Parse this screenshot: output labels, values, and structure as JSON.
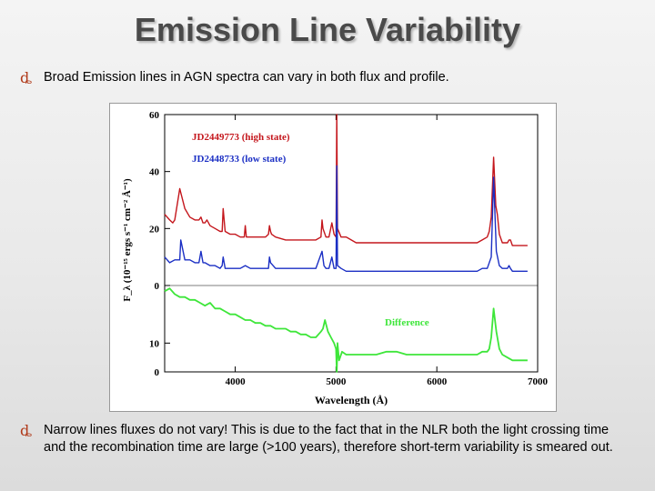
{
  "slide": {
    "title": "Emission Line Variability",
    "bullet_glyph": "ȡ",
    "bullet1": "Broad Emission lines in AGN spectra can vary in both flux and profile.",
    "bullet2": "Narrow lines fluxes do not vary! This is due to the fact that in the NLR both the light crossing time and the recombination time are large (>100 years), therefore short-term variability is smeared out."
  },
  "chart_data": {
    "type": "line",
    "xlabel": "Wavelength (Å)",
    "ylabel": "F_λ (10⁻¹⁵ ergs s⁻¹ cm⁻² Å⁻¹)",
    "xlim": [
      3300,
      7000
    ],
    "ylim_top": [
      0,
      60
    ],
    "ylim_bottom": [
      0,
      30
    ],
    "x_ticks": [
      "4000",
      "5000",
      "6000",
      "7000"
    ],
    "y_ticks_top": [
      "0",
      "20",
      "40",
      "60"
    ],
    "y_ticks_bottom": [
      "0",
      "10"
    ],
    "series": [
      {
        "name": "JD2449773 (high state)",
        "color": "#c4161c",
        "x": [
          3300,
          3350,
          3380,
          3400,
          3450,
          3500,
          3550,
          3600,
          3640,
          3660,
          3680,
          3700,
          3720,
          3750,
          3800,
          3850,
          3870,
          3880,
          3900,
          3950,
          4000,
          4050,
          4090,
          4100,
          4110,
          4150,
          4200,
          4300,
          4330,
          4340,
          4350,
          4360,
          4400,
          4500,
          4550,
          4600,
          4650,
          4700,
          4800,
          4850,
          4861,
          4870,
          4900,
          4930,
          4959,
          4980,
          5000,
          5007,
          5015,
          5050,
          5100,
          5200,
          5300,
          5400,
          5500,
          5600,
          5700,
          5800,
          5900,
          6000,
          6100,
          6200,
          6300,
          6400,
          6450,
          6500,
          6520,
          6540,
          6563,
          6585,
          6600,
          6620,
          6650,
          6700,
          6716,
          6730,
          6750,
          6800,
          6850,
          6900
        ],
        "values": [
          25,
          23,
          22,
          23,
          34,
          27,
          24,
          23,
          23,
          24,
          22,
          22,
          23,
          21,
          20,
          19,
          19,
          27,
          19,
          18,
          18,
          17,
          17,
          21,
          17,
          17,
          17,
          17,
          18,
          21,
          19,
          18,
          17,
          16,
          16,
          16,
          16,
          16,
          16,
          17,
          23,
          20,
          17,
          17,
          22,
          18,
          17,
          62,
          20,
          17,
          17,
          15,
          15,
          15,
          15,
          15,
          15,
          15,
          15,
          15,
          15,
          15,
          15,
          15,
          16,
          17,
          19,
          24,
          45,
          28,
          25,
          18,
          15,
          15,
          16,
          16,
          14,
          14,
          14,
          14
        ]
      },
      {
        "name": "JD2448733 (low state)",
        "color": "#1b2fc4",
        "x": [
          3300,
          3350,
          3400,
          3450,
          3460,
          3500,
          3550,
          3600,
          3640,
          3660,
          3680,
          3700,
          3750,
          3800,
          3850,
          3870,
          3880,
          3900,
          3950,
          4000,
          4050,
          4100,
          4150,
          4200,
          4300,
          4330,
          4340,
          4350,
          4400,
          4500,
          4600,
          4700,
          4800,
          4861,
          4880,
          4900,
          4930,
          4959,
          4980,
          5000,
          5007,
          5015,
          5050,
          5100,
          5200,
          5300,
          5400,
          5500,
          5600,
          5700,
          5800,
          5900,
          6000,
          6100,
          6200,
          6300,
          6400,
          6450,
          6500,
          6540,
          6563,
          6590,
          6620,
          6650,
          6700,
          6716,
          6730,
          6750,
          6800,
          6900
        ],
        "values": [
          10,
          8,
          9,
          9,
          16,
          9,
          9,
          8,
          8,
          12,
          8,
          8,
          7,
          7,
          6,
          7,
          10,
          6,
          6,
          6,
          6,
          7,
          6,
          6,
          6,
          6,
          10,
          8,
          6,
          6,
          6,
          6,
          6,
          12,
          7,
          6,
          6,
          10,
          6,
          6,
          42,
          7,
          6,
          5,
          5,
          5,
          5,
          5,
          5,
          5,
          5,
          5,
          5,
          5,
          5,
          5,
          5,
          6,
          6,
          10,
          38,
          12,
          7,
          6,
          6,
          7,
          6,
          5,
          5,
          5
        ]
      },
      {
        "name": "Difference",
        "color": "#3ee63a",
        "x": [
          3300,
          3350,
          3400,
          3450,
          3500,
          3550,
          3600,
          3650,
          3700,
          3750,
          3800,
          3850,
          3900,
          3950,
          4000,
          4050,
          4100,
          4150,
          4200,
          4250,
          4300,
          4350,
          4400,
          4450,
          4500,
          4550,
          4600,
          4650,
          4700,
          4750,
          4800,
          4850,
          4870,
          4890,
          4920,
          4950,
          4980,
          5000,
          5007,
          5015,
          5030,
          5060,
          5100,
          5200,
          5300,
          5400,
          5500,
          5600,
          5700,
          5800,
          5900,
          6000,
          6100,
          6200,
          6300,
          6400,
          6450,
          6500,
          6520,
          6540,
          6563,
          6590,
          6620,
          6650,
          6700,
          6750,
          6800,
          6900
        ],
        "values": [
          28,
          29,
          27,
          26,
          26,
          25,
          25,
          24,
          23,
          24,
          22,
          22,
          21,
          20,
          20,
          19,
          18,
          18,
          17,
          17,
          16,
          16,
          15,
          15,
          15,
          14,
          14,
          13,
          13,
          12,
          12,
          14,
          15,
          18,
          14,
          12,
          10,
          8,
          -10,
          10,
          4,
          7,
          6,
          6,
          6,
          6,
          7,
          7,
          6,
          6,
          6,
          6,
          6,
          6,
          6,
          6,
          7,
          7,
          8,
          12,
          22,
          14,
          8,
          6,
          5,
          4,
          4,
          4
        ]
      }
    ],
    "annotation": "Difference"
  }
}
